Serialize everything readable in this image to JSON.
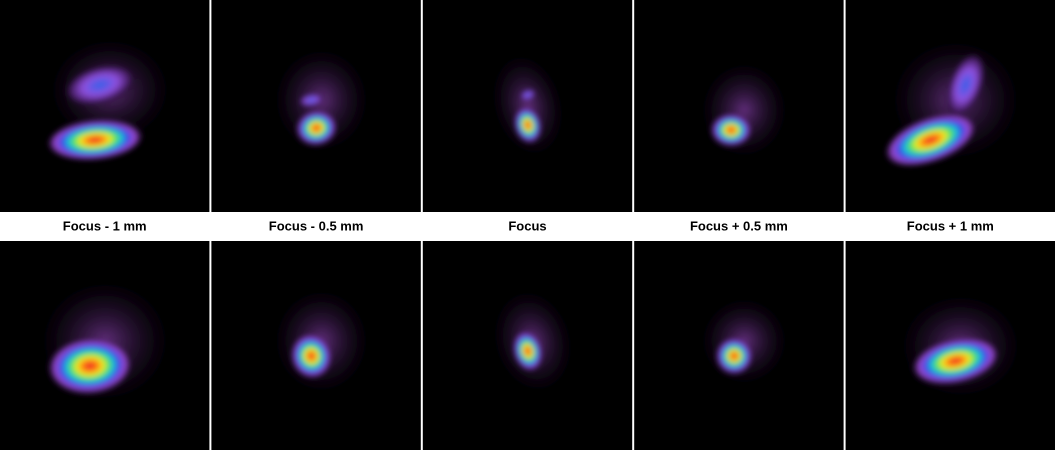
{
  "labels": [
    "Focus - 1 mm",
    "Focus - 0.5 mm",
    "Focus",
    "Focus + 0.5 mm",
    "Focus + 1 mm"
  ]
}
